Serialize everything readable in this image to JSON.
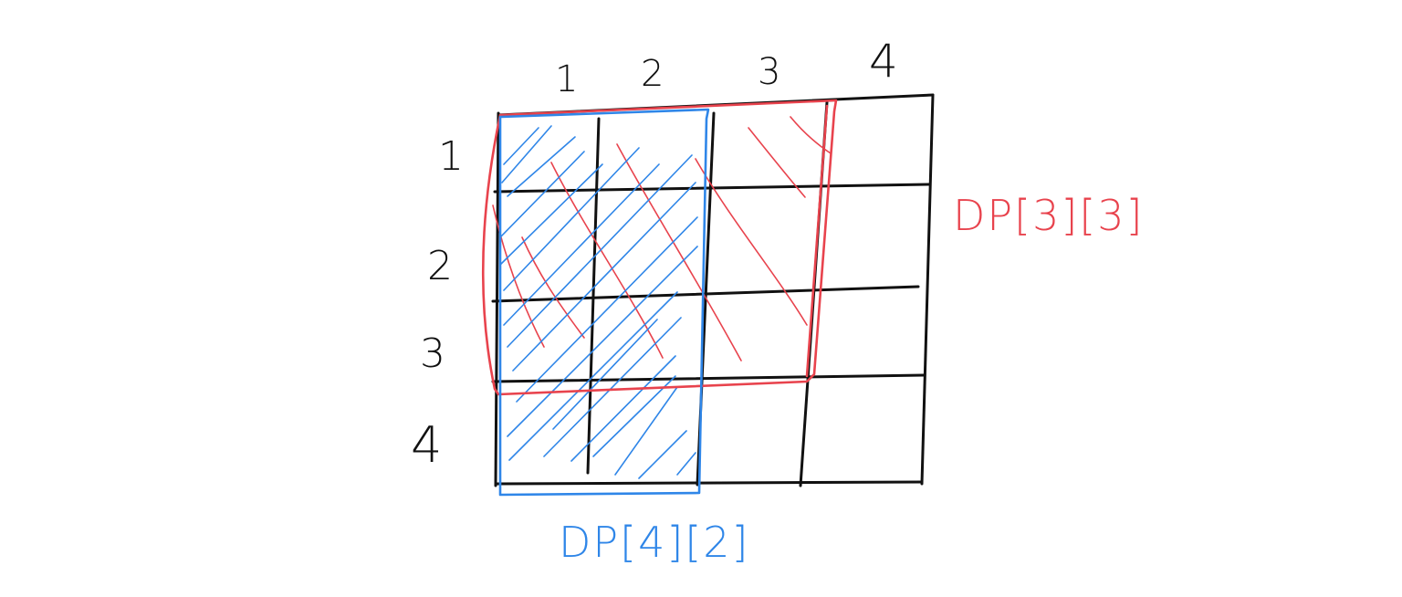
{
  "grid": {
    "rows": 4,
    "cols": 4,
    "col_labels": [
      "1",
      "2",
      "3",
      "4"
    ],
    "row_labels": [
      "1",
      "2",
      "3",
      "4"
    ],
    "line_color": "#111111"
  },
  "highlights": [
    {
      "label": "DP[3][3]",
      "rows": 3,
      "cols": 3,
      "color": "#e8434d",
      "style": "diagonal-hatch-down"
    },
    {
      "label": "DP[4][2]",
      "rows": 4,
      "cols": 2,
      "color": "#2f86e8",
      "style": "diagonal-hatch-up"
    }
  ]
}
